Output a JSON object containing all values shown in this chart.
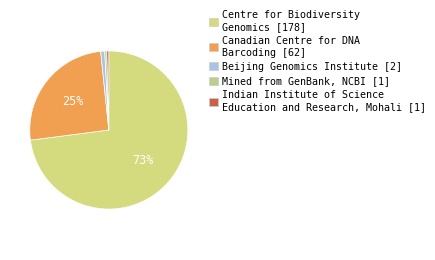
{
  "labels": [
    "Centre for Biodiversity\nGenomics [178]",
    "Canadian Centre for DNA\nBarcoding [62]",
    "Beijing Genomics Institute [2]",
    "Mined from GenBank, NCBI [1]",
    "Indian Institute of Science\nEducation and Research, Mohali [1]"
  ],
  "values": [
    178,
    62,
    2,
    1,
    1
  ],
  "colors": [
    "#d4db7f",
    "#f0a050",
    "#a8c4e0",
    "#b8d08c",
    "#c8604a"
  ],
  "background_color": "#ffffff",
  "legend_fontsize": 7.2,
  "pct_fontsize": 8.5,
  "pct_color": "white"
}
